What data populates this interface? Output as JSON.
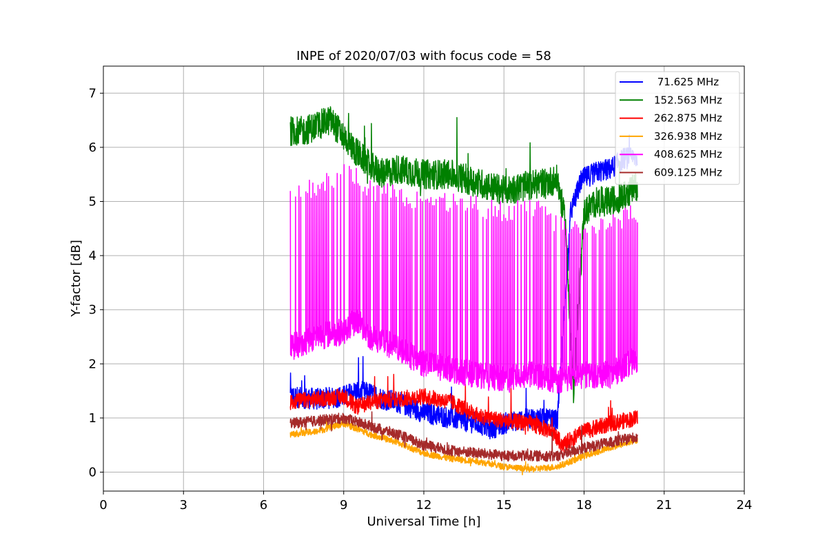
{
  "chart_data": {
    "type": "line",
    "title": "INPE of 2020/07/03 with focus code = 58",
    "xlabel": "Universal Time [h]",
    "ylabel": "Y-factor [dB]",
    "xlim": [
      0,
      24
    ],
    "ylim": [
      -0.35,
      7.5
    ],
    "xticks": [
      0,
      3,
      6,
      9,
      12,
      15,
      18,
      21,
      24
    ],
    "yticks": [
      0,
      1,
      2,
      3,
      4,
      5,
      6,
      7
    ],
    "grid": true,
    "legend_position": "top-right",
    "series": [
      {
        "name": " 71.625 MHz",
        "color": "#0000ff",
        "x": [
          7.0,
          8.0,
          9.0,
          9.5,
          10.0,
          10.5,
          11.0,
          12.0,
          13.0,
          14.0,
          14.5,
          15.0,
          16.0,
          17.0,
          17.5,
          17.9,
          18.5,
          19.0,
          19.5,
          20.0
        ],
        "y": [
          1.4,
          1.35,
          1.4,
          1.5,
          1.45,
          1.35,
          1.3,
          1.1,
          1.0,
          0.9,
          0.8,
          0.9,
          1.0,
          0.95,
          4.8,
          5.4,
          5.55,
          5.6,
          5.8,
          5.8
        ],
        "spread": 0.4
      },
      {
        "name": "152.563 MHz",
        "color": "#008000",
        "x": [
          7.0,
          7.5,
          8.0,
          8.5,
          9.0,
          9.5,
          10.0,
          10.5,
          11.0,
          12.0,
          13.0,
          14.0,
          15.0,
          16.0,
          17.0,
          17.3,
          17.6,
          18.0,
          18.5,
          19.0,
          19.5,
          20.0
        ],
        "y": [
          6.3,
          6.3,
          6.4,
          6.5,
          6.2,
          5.9,
          5.65,
          5.5,
          5.6,
          5.5,
          5.5,
          5.35,
          5.2,
          5.3,
          5.4,
          4.6,
          1.5,
          4.8,
          5.0,
          5.0,
          5.1,
          5.3
        ],
        "spread": 0.55
      },
      {
        "name": "262.875 MHz",
        "color": "#ff0000",
        "x": [
          7.0,
          8.0,
          9.0,
          9.5,
          10.0,
          11.0,
          12.0,
          13.0,
          14.0,
          15.0,
          16.0,
          16.8,
          17.2,
          17.5,
          18.0,
          19.0,
          20.0
        ],
        "y": [
          1.3,
          1.35,
          1.4,
          1.2,
          1.3,
          1.35,
          1.4,
          1.3,
          1.05,
          0.95,
          0.9,
          0.75,
          0.5,
          0.6,
          0.75,
          0.9,
          1.0
        ],
        "spread": 0.3
      },
      {
        "name": "326.938 MHz",
        "color": "#ffa500",
        "x": [
          7.0,
          8.0,
          9.0,
          10.0,
          11.0,
          12.0,
          13.0,
          14.0,
          15.0,
          16.0,
          17.0,
          18.0,
          19.0,
          20.0
        ],
        "y": [
          0.7,
          0.75,
          0.9,
          0.7,
          0.55,
          0.35,
          0.25,
          0.2,
          0.1,
          0.05,
          0.1,
          0.3,
          0.45,
          0.6
        ],
        "spread": 0.12
      },
      {
        "name": "408.625 MHz",
        "color": "#ff00ff",
        "x": [
          7.0,
          8.0,
          9.0,
          9.5,
          10.0,
          11.0,
          12.0,
          13.0,
          14.0,
          15.0,
          16.0,
          17.0,
          18.0,
          19.0,
          20.0
        ],
        "y": [
          2.3,
          2.5,
          2.6,
          2.8,
          2.5,
          2.3,
          2.0,
          1.9,
          1.8,
          1.7,
          1.8,
          1.7,
          1.8,
          1.8,
          2.1
        ],
        "spread": 0.5,
        "spikes_to": [
          5.1,
          5.3,
          5.5,
          5.5,
          5.2,
          5.1,
          5.0,
          5.0,
          4.9,
          4.8,
          4.9,
          4.6,
          4.4,
          4.6,
          4.8
        ]
      },
      {
        "name": "609.125 MHz",
        "color": "#a52a2a",
        "x": [
          7.0,
          8.0,
          9.0,
          10.0,
          11.0,
          12.0,
          13.0,
          14.0,
          15.0,
          16.0,
          17.0,
          18.0,
          19.0,
          20.0
        ],
        "y": [
          0.9,
          0.95,
          1.0,
          0.85,
          0.7,
          0.5,
          0.4,
          0.35,
          0.3,
          0.3,
          0.3,
          0.45,
          0.55,
          0.65
        ],
        "spread": 0.2
      }
    ]
  }
}
